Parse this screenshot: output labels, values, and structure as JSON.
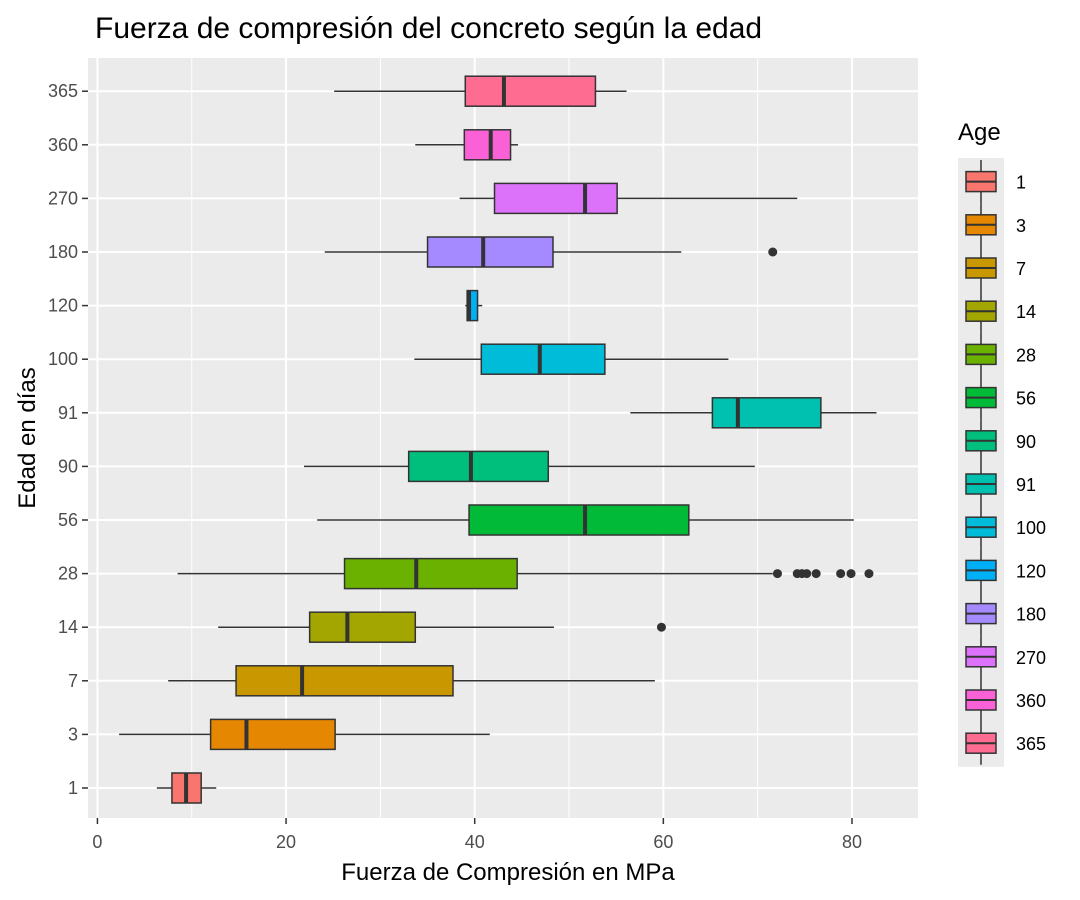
{
  "chart_data": {
    "type": "boxplot",
    "orientation": "horizontal",
    "title": "Fuerza de compresión del concreto según la edad",
    "xlabel": "Fuerza de Compresión en MPa",
    "ylabel": "Edad en días",
    "xlim": [
      -1,
      87
    ],
    "xticks": [
      0,
      20,
      40,
      60,
      80
    ],
    "grid": true,
    "legend": {
      "title": "Age",
      "position": "right"
    },
    "categories": [
      "1",
      "3",
      "7",
      "14",
      "28",
      "56",
      "90",
      "91",
      "100",
      "120",
      "180",
      "270",
      "360",
      "365"
    ],
    "colors": [
      "#F8766D",
      "#E58700",
      "#C99800",
      "#A3A500",
      "#6BB100",
      "#00BA38",
      "#00BF7D",
      "#00C0AF",
      "#00BCD8",
      "#00B0F6",
      "#A58AFF",
      "#DC71FA",
      "#FB61D7",
      "#FF6C91"
    ],
    "boxes": [
      {
        "age": "1",
        "min": 6.3,
        "q1": 7.9,
        "median": 9.4,
        "q3": 11.0,
        "max": 12.6,
        "outliers": []
      },
      {
        "age": "3",
        "min": 2.3,
        "q1": 12.0,
        "median": 15.8,
        "q3": 25.2,
        "max": 41.6,
        "outliers": []
      },
      {
        "age": "7",
        "min": 7.5,
        "q1": 14.7,
        "median": 21.7,
        "q3": 37.7,
        "max": 59.1,
        "outliers": []
      },
      {
        "age": "14",
        "min": 12.8,
        "q1": 22.5,
        "median": 26.5,
        "q3": 33.7,
        "max": 48.4,
        "outliers": [
          59.8
        ]
      },
      {
        "age": "28",
        "min": 8.5,
        "q1": 26.2,
        "median": 33.8,
        "q3": 44.5,
        "max": 71.6,
        "outliers": [
          72.1,
          74.2,
          74.7,
          75.2,
          76.2,
          78.8,
          79.9,
          81.8
        ]
      },
      {
        "age": "56",
        "min": 23.3,
        "q1": 39.4,
        "median": 51.7,
        "q3": 62.7,
        "max": 80.2,
        "outliers": []
      },
      {
        "age": "90",
        "min": 21.9,
        "q1": 33.0,
        "median": 39.6,
        "q3": 47.8,
        "max": 69.7,
        "outliers": []
      },
      {
        "age": "91",
        "min": 56.5,
        "q1": 65.2,
        "median": 67.9,
        "q3": 76.7,
        "max": 82.6,
        "outliers": []
      },
      {
        "age": "100",
        "min": 33.6,
        "q1": 40.7,
        "median": 46.9,
        "q3": 53.8,
        "max": 66.9,
        "outliers": []
      },
      {
        "age": "120",
        "min": 39.0,
        "q1": 39.2,
        "median": 39.4,
        "q3": 40.3,
        "max": 40.8,
        "outliers": []
      },
      {
        "age": "180",
        "min": 24.1,
        "q1": 35.0,
        "median": 40.9,
        "q3": 48.3,
        "max": 61.9,
        "outliers": [
          71.6
        ]
      },
      {
        "age": "270",
        "min": 38.4,
        "q1": 42.1,
        "median": 51.7,
        "q3": 55.1,
        "max": 74.2,
        "outliers": []
      },
      {
        "age": "360",
        "min": 33.7,
        "q1": 38.9,
        "median": 41.7,
        "q3": 43.8,
        "max": 44.6,
        "outliers": []
      },
      {
        "age": "365",
        "min": 25.1,
        "q1": 39.0,
        "median": 43.1,
        "q3": 52.8,
        "max": 56.1,
        "outliers": []
      }
    ]
  }
}
